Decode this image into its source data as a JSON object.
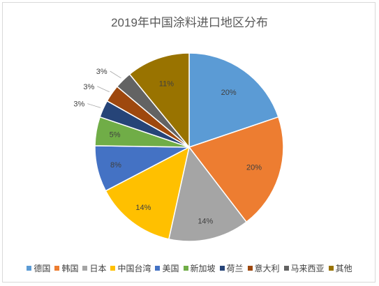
{
  "chart_data": {
    "type": "pie",
    "title": "2019年中国涂料进口地区分布",
    "categories": [
      "德国",
      "韩国",
      "日本",
      "中国台湾",
      "美国",
      "新加坡",
      "荷兰",
      "意大利",
      "马来西亚",
      "其他"
    ],
    "values": [
      20,
      20,
      14,
      14,
      8,
      5,
      3,
      3,
      3,
      11
    ],
    "labels": [
      "20%",
      "20%",
      "14%",
      "14%",
      "8%",
      "5%",
      "3%",
      "3%",
      "3%",
      "11%"
    ],
    "colors": [
      "#5b9bd5",
      "#ed7d31",
      "#a5a5a5",
      "#ffc000",
      "#4472c4",
      "#70ad47",
      "#264478",
      "#9e480e",
      "#636363",
      "#997300"
    ],
    "legend_position": "bottom"
  }
}
